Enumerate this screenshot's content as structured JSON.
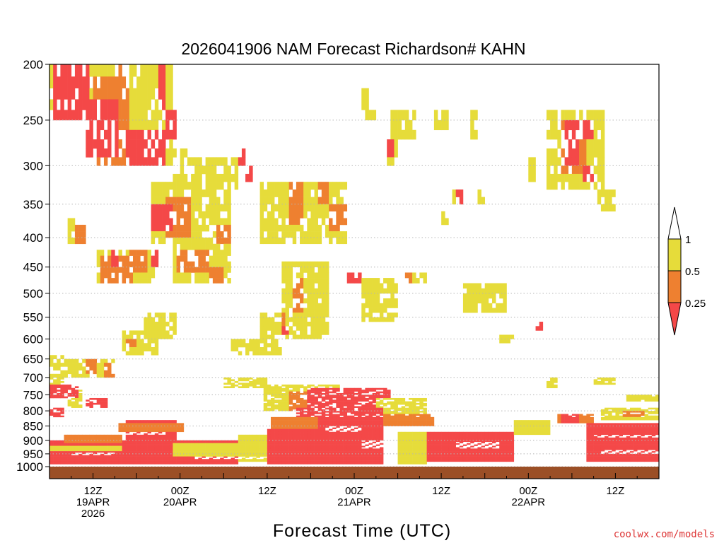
{
  "chart_data": {
    "type": "heatmap",
    "title": "2026041906 NAM Forecast Richardson# KAHN",
    "xlabel": "Forecast Time (UTC)",
    "ylabel": "",
    "credit": "coolwx.com/models",
    "x_range_hours": [
      0,
      84
    ],
    "y_scale": "log-pressure",
    "y_range_mb": [
      1000,
      200
    ],
    "y_ticks": [
      "200",
      "250",
      "300",
      "350",
      "400",
      "450",
      "500",
      "550",
      "600",
      "650",
      "700",
      "750",
      "800",
      "850",
      "900",
      "950",
      "1000"
    ],
    "x_ticks": [
      {
        "hour": 6,
        "lines": [
          "12Z",
          "19APR",
          "2026"
        ]
      },
      {
        "hour": 18,
        "lines": [
          "00Z",
          "20APR"
        ]
      },
      {
        "hour": 30,
        "lines": [
          "12Z"
        ]
      },
      {
        "hour": 42,
        "lines": [
          "00Z",
          "21APR"
        ]
      },
      {
        "hour": 54,
        "lines": [
          "12Z"
        ]
      },
      {
        "hour": 66,
        "lines": [
          "00Z",
          "22APR"
        ]
      },
      {
        "hour": 78,
        "lines": [
          "12Z"
        ]
      }
    ],
    "colors": {
      "low": "#f44848",
      "mid": "#ee8030",
      "high": "#e6dc3a",
      "ground": "#9b4f26"
    },
    "legend": {
      "labels": [
        "1",
        "0.5",
        "0.25"
      ],
      "position": "right"
    },
    "regions": [
      {
        "cat": "high",
        "h0": 0.0,
        "h1": 2.0,
        "p0": 640,
        "p1": 720
      },
      {
        "cat": "high",
        "h0": 2.0,
        "h1": 9.0,
        "p0": 650,
        "p1": 700
      },
      {
        "cat": "mid",
        "h0": 5.0,
        "h1": 6.5,
        "p0": 650,
        "p1": 690
      },
      {
        "cat": "mid",
        "h0": 7.5,
        "h1": 9.0,
        "p0": 660,
        "p1": 700
      },
      {
        "cat": "high",
        "h0": 2.5,
        "h1": 4.5,
        "p0": 720,
        "p1": 790
      },
      {
        "cat": "high",
        "h0": 10.0,
        "h1": 15.0,
        "p0": 580,
        "p1": 640
      },
      {
        "cat": "mid",
        "h0": 10.5,
        "h1": 12.0,
        "p0": 600,
        "p1": 620
      },
      {
        "cat": "high",
        "h0": 13.0,
        "h1": 17.5,
        "p0": 540,
        "p1": 600
      },
      {
        "cat": "high",
        "h0": 6.5,
        "h1": 14.5,
        "p0": 420,
        "p1": 480
      },
      {
        "cat": "mid",
        "h0": 7.0,
        "h1": 11.5,
        "p0": 430,
        "p1": 475
      },
      {
        "cat": "mid",
        "h0": 11.0,
        "h1": 13.5,
        "p0": 420,
        "p1": 455
      },
      {
        "cat": "low",
        "h0": 8.5,
        "h1": 9.5,
        "p0": 420,
        "p1": 450
      },
      {
        "cat": "low",
        "h0": 14.0,
        "h1": 15.0,
        "p0": 420,
        "p1": 450
      },
      {
        "cat": "high",
        "h0": 17.0,
        "h1": 25.0,
        "p0": 410,
        "p1": 480
      },
      {
        "cat": "mid",
        "h0": 17.5,
        "h1": 22.0,
        "p0": 420,
        "p1": 460
      },
      {
        "cat": "mid",
        "h0": 22.0,
        "h1": 24.0,
        "p0": 450,
        "p1": 480
      },
      {
        "cat": "high",
        "h0": 2.5,
        "h1": 5.0,
        "p0": 370,
        "p1": 410
      },
      {
        "cat": "mid",
        "h0": 3.5,
        "h1": 5.0,
        "p0": 380,
        "p1": 405
      },
      {
        "cat": "high",
        "h0": 14.0,
        "h1": 25.0,
        "p0": 325,
        "p1": 410
      },
      {
        "cat": "mid",
        "h0": 16.0,
        "h1": 19.5,
        "p0": 340,
        "p1": 400
      },
      {
        "cat": "low",
        "h0": 14.0,
        "h1": 17.0,
        "p0": 350,
        "p1": 390
      },
      {
        "cat": "mid",
        "h0": 23.0,
        "h1": 25.0,
        "p0": 380,
        "p1": 410
      },
      {
        "cat": "high",
        "h0": 29.0,
        "h1": 41.0,
        "p0": 320,
        "p1": 410
      },
      {
        "cat": "mid",
        "h0": 33.0,
        "h1": 35.0,
        "p0": 320,
        "p1": 380
      },
      {
        "cat": "mid",
        "h0": 38.5,
        "h1": 41.0,
        "p0": 350,
        "p1": 385
      },
      {
        "cat": "mid",
        "h0": 37.0,
        "h1": 38.5,
        "p0": 320,
        "p1": 350
      },
      {
        "cat": "high",
        "h0": 0.0,
        "h1": 6.0,
        "p0": 200,
        "p1": 240
      },
      {
        "cat": "low",
        "h0": 0.5,
        "h1": 5.5,
        "p0": 200,
        "p1": 245
      },
      {
        "cat": "high",
        "h0": 6.0,
        "h1": 17.0,
        "p0": 200,
        "p1": 300
      },
      {
        "cat": "mid",
        "h0": 6.0,
        "h1": 11.0,
        "p0": 210,
        "p1": 300
      },
      {
        "cat": "low",
        "h0": 5.0,
        "h1": 9.5,
        "p0": 230,
        "p1": 290
      },
      {
        "cat": "low",
        "h0": 10.5,
        "h1": 16.0,
        "p0": 260,
        "p1": 300
      },
      {
        "cat": "mid",
        "h0": 9.5,
        "h1": 11.0,
        "p0": 200,
        "p1": 220
      },
      {
        "cat": "low",
        "h0": 15.0,
        "h1": 16.0,
        "p0": 200,
        "p1": 240
      },
      {
        "cat": "low",
        "h0": 16.0,
        "h1": 17.5,
        "p0": 245,
        "p1": 265
      },
      {
        "cat": "high",
        "h0": 17.0,
        "h1": 19.5,
        "p0": 280,
        "p1": 330
      },
      {
        "cat": "high",
        "h0": 19.0,
        "h1": 26.0,
        "p0": 290,
        "p1": 330
      },
      {
        "cat": "low",
        "h0": 26.0,
        "h1": 27.0,
        "p0": 280,
        "p1": 300
      },
      {
        "cat": "low",
        "h0": 27.0,
        "h1": 28.0,
        "p0": 300,
        "p1": 320
      },
      {
        "cat": "high",
        "h0": 43.0,
        "h1": 45.0,
        "p0": 220,
        "p1": 250
      },
      {
        "cat": "high",
        "h0": 47.0,
        "h1": 50.5,
        "p0": 240,
        "p1": 265
      },
      {
        "cat": "high",
        "h0": 46.5,
        "h1": 48.0,
        "p0": 270,
        "p1": 300
      },
      {
        "cat": "low",
        "h0": 46.5,
        "h1": 47.5,
        "p0": 270,
        "p1": 285
      },
      {
        "cat": "high",
        "h0": 53.0,
        "h1": 55.0,
        "p0": 245,
        "p1": 260
      },
      {
        "cat": "high",
        "h0": 58.0,
        "h1": 59.0,
        "p0": 245,
        "p1": 265
      },
      {
        "cat": "high",
        "h0": 68.5,
        "h1": 76.5,
        "p0": 245,
        "p1": 330
      },
      {
        "cat": "mid",
        "h0": 70.5,
        "h1": 74.0,
        "p0": 250,
        "p1": 310
      },
      {
        "cat": "low",
        "h0": 71.0,
        "h1": 73.0,
        "p0": 255,
        "p1": 300
      },
      {
        "cat": "low",
        "h0": 73.5,
        "h1": 75.0,
        "p0": 300,
        "p1": 320
      },
      {
        "cat": "low",
        "h0": 73.5,
        "h1": 75.0,
        "p0": 255,
        "p1": 265
      },
      {
        "cat": "high",
        "h0": 75.5,
        "h1": 78.0,
        "p0": 330,
        "p1": 355
      },
      {
        "cat": "high",
        "h0": 66.0,
        "h1": 67.0,
        "p0": 295,
        "p1": 315
      },
      {
        "cat": "high",
        "h0": 55.5,
        "h1": 57.0,
        "p0": 330,
        "p1": 350
      },
      {
        "cat": "low",
        "h0": 56.0,
        "h1": 57.0,
        "p0": 330,
        "p1": 350
      },
      {
        "cat": "high",
        "h0": 59.0,
        "h1": 60.0,
        "p0": 330,
        "p1": 350
      },
      {
        "cat": "high",
        "h0": 54.0,
        "h1": 55.0,
        "p0": 360,
        "p1": 380
      },
      {
        "cat": "high",
        "h0": 32.0,
        "h1": 38.5,
        "p0": 440,
        "p1": 600
      },
      {
        "cat": "mid",
        "h0": 33.5,
        "h1": 35.0,
        "p0": 470,
        "p1": 540
      },
      {
        "cat": "mid",
        "h0": 30.5,
        "h1": 32.5,
        "p0": 540,
        "p1": 570
      },
      {
        "cat": "low",
        "h0": 32.0,
        "h1": 33.0,
        "p0": 570,
        "p1": 590
      },
      {
        "cat": "high",
        "h0": 25.0,
        "h1": 32.0,
        "p0": 600,
        "p1": 640
      },
      {
        "cat": "high",
        "h0": 29.0,
        "h1": 32.0,
        "p0": 540,
        "p1": 600
      },
      {
        "cat": "low",
        "h0": 41.0,
        "h1": 43.0,
        "p0": 460,
        "p1": 480
      },
      {
        "cat": "high",
        "h0": 43.0,
        "h1": 48.0,
        "p0": 470,
        "p1": 560
      },
      {
        "cat": "high",
        "h0": 57.0,
        "h1": 63.0,
        "p0": 480,
        "p1": 540
      },
      {
        "cat": "high",
        "h0": 50.0,
        "h1": 52.0,
        "p0": 460,
        "p1": 480
      },
      {
        "cat": "mid",
        "h0": 49.0,
        "h1": 50.0,
        "p0": 460,
        "p1": 480
      },
      {
        "cat": "high",
        "h0": 62.0,
        "h1": 64.0,
        "p0": 590,
        "p1": 610
      },
      {
        "cat": "low",
        "h0": 67.0,
        "h1": 68.0,
        "p0": 560,
        "p1": 580
      },
      {
        "cat": "high",
        "h0": 24.0,
        "h1": 30.0,
        "p0": 700,
        "p1": 730
      },
      {
        "cat": "high",
        "h0": 29.5,
        "h1": 40.0,
        "p0": 720,
        "p1": 800
      },
      {
        "cat": "mid",
        "h0": 33.0,
        "h1": 37.0,
        "p0": 740,
        "p1": 800
      },
      {
        "cat": "low",
        "h0": 35.5,
        "h1": 47.0,
        "p0": 730,
        "p1": 800
      },
      {
        "cat": "high",
        "h0": 45.0,
        "h1": 52.0,
        "p0": 760,
        "p1": 820
      },
      {
        "cat": "low",
        "h0": 34.0,
        "h1": 46.0,
        "p0": 790,
        "p1": 950
      },
      {
        "cat": "mid",
        "h0": 30.5,
        "h1": 37.0,
        "p0": 820,
        "p1": 860
      },
      {
        "cat": "mid",
        "h0": 46.0,
        "h1": 53.0,
        "p0": 810,
        "p1": 850
      },
      {
        "cat": "high",
        "h0": 26.0,
        "h1": 30.0,
        "p0": 880,
        "p1": 980
      },
      {
        "cat": "high",
        "h0": 48.0,
        "h1": 52.0,
        "p0": 870,
        "p1": 990
      },
      {
        "cat": "low",
        "h0": 52.0,
        "h1": 64.0,
        "p0": 870,
        "p1": 980
      },
      {
        "cat": "high",
        "h0": 64.0,
        "h1": 69.0,
        "p0": 830,
        "p1": 880
      },
      {
        "cat": "mid",
        "h0": 70.0,
        "h1": 75.0,
        "p0": 810,
        "p1": 840
      },
      {
        "cat": "low",
        "h0": 70.5,
        "h1": 73.0,
        "p0": 810,
        "p1": 840
      },
      {
        "cat": "high",
        "h0": 76.0,
        "h1": 84.0,
        "p0": 790,
        "p1": 830
      },
      {
        "cat": "mid",
        "h0": 79.0,
        "h1": 82.0,
        "p0": 800,
        "p1": 820
      },
      {
        "cat": "low",
        "h0": 74.0,
        "h1": 84.0,
        "p0": 840,
        "p1": 980
      },
      {
        "cat": "high",
        "h0": 79.5,
        "h1": 84.0,
        "p0": 750,
        "p1": 770
      },
      {
        "cat": "low",
        "h0": 84.0,
        "h1": 84.0,
        "p0": 750,
        "p1": 760
      },
      {
        "cat": "high",
        "h0": 68.5,
        "h1": 70.0,
        "p0": 700,
        "p1": 730
      },
      {
        "cat": "high",
        "h0": 75.0,
        "h1": 78.0,
        "p0": 700,
        "p1": 720
      },
      {
        "cat": "low",
        "h0": 0.0,
        "h1": 26.0,
        "p0": 900,
        "p1": 990
      },
      {
        "cat": "low",
        "h0": 10.5,
        "h1": 17.5,
        "p0": 830,
        "p1": 910
      },
      {
        "cat": "mid",
        "h0": 9.5,
        "h1": 18.5,
        "p0": 840,
        "p1": 870
      },
      {
        "cat": "high",
        "h0": 0.0,
        "h1": 10.0,
        "p0": 920,
        "p1": 940
      },
      {
        "cat": "mid",
        "h0": 2.0,
        "h1": 10.0,
        "p0": 880,
        "p1": 910
      },
      {
        "cat": "high",
        "h0": 17.0,
        "h1": 26.0,
        "p0": 910,
        "p1": 960
      },
      {
        "cat": "low",
        "h0": 30.0,
        "h1": 46.0,
        "p0": 860,
        "p1": 990
      },
      {
        "cat": "low",
        "h0": 0.0,
        "h1": 4.0,
        "p0": 720,
        "p1": 760
      },
      {
        "cat": "low",
        "h0": 5.0,
        "h1": 8.0,
        "p0": 760,
        "p1": 790
      },
      {
        "cat": "low",
        "h0": 0.0,
        "h1": 2.0,
        "p0": 790,
        "p1": 820
      }
    ],
    "gaps": [
      {
        "h0": 10.5,
        "h1": 16.0,
        "p0": 870,
        "p1": 880
      },
      {
        "h0": 38.0,
        "h1": 43.0,
        "p0": 850,
        "p1": 870
      },
      {
        "h0": 43.0,
        "h1": 48.0,
        "p0": 900,
        "p1": 930
      },
      {
        "h0": 56.0,
        "h1": 62.0,
        "p0": 905,
        "p1": 930
      },
      {
        "h0": 75.0,
        "h1": 84.0,
        "p0": 880,
        "p1": 890
      },
      {
        "h0": 76.0,
        "h1": 84.0,
        "p0": 935,
        "p1": 950
      },
      {
        "h0": 3.0,
        "h1": 9.0,
        "p0": 945,
        "p1": 955
      },
      {
        "h0": 20.0,
        "h1": 30.0,
        "p0": 960,
        "p1": 970
      }
    ]
  }
}
